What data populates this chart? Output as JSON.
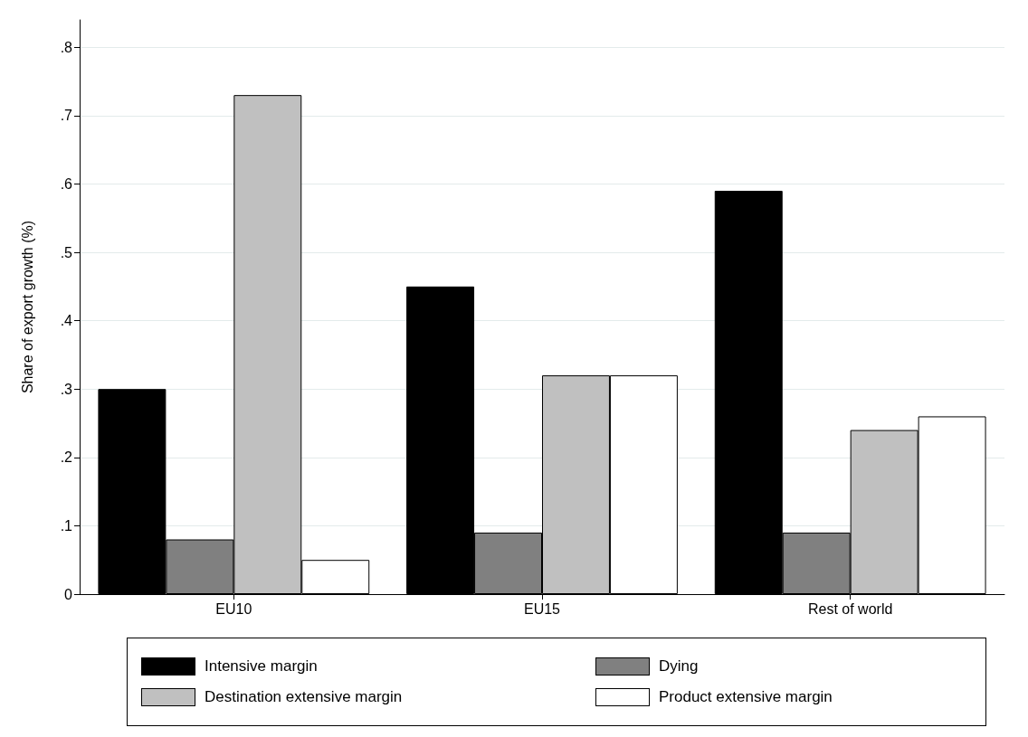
{
  "chart_data": {
    "type": "bar",
    "ylabel": "Share of export growth (%)",
    "categories": [
      "EU10",
      "EU15",
      "Rest of world"
    ],
    "series": [
      {
        "name": "Intensive margin",
        "color": "#000000",
        "values": [
          0.3,
          0.45,
          0.59
        ]
      },
      {
        "name": "Dying",
        "color": "#808080",
        "values": [
          0.08,
          0.09,
          0.09
        ]
      },
      {
        "name": "Destination extensive margin",
        "color": "#c0c0c0",
        "values": [
          0.73,
          0.32,
          0.24
        ]
      },
      {
        "name": "Product extensive margin",
        "color": "#ffffff",
        "values": [
          0.05,
          0.32,
          0.26
        ]
      }
    ],
    "ylim": [
      0,
      0.84
    ],
    "yticks": [
      0,
      {
        "value": 0.1,
        "label": ".1"
      },
      {
        "value": 0.2,
        "label": ".2"
      },
      {
        "value": 0.3,
        "label": ".3"
      },
      {
        "value": 0.4,
        "label": ".4"
      },
      {
        "value": 0.5,
        "label": ".5"
      },
      {
        "value": 0.6,
        "label": ".6"
      },
      {
        "value": 0.7,
        "label": ".7"
      },
      {
        "value": 0.8,
        "label": ".8"
      }
    ],
    "grid": "y",
    "legend": "bottom"
  }
}
